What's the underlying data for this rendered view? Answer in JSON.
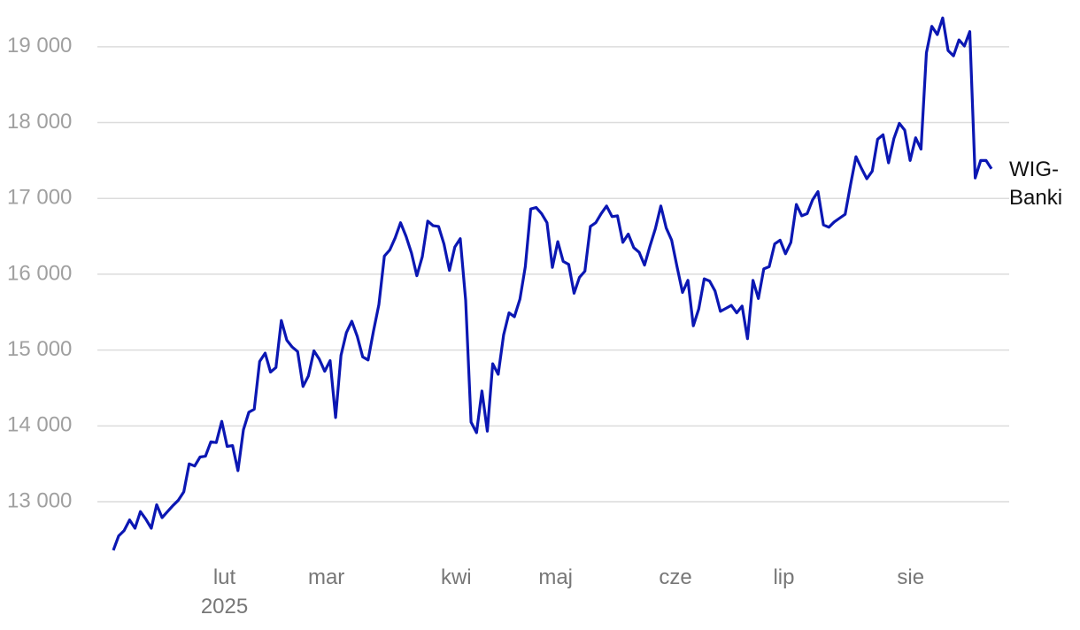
{
  "chart_data": {
    "type": "line",
    "xlim": [
      0,
      162
    ],
    "xticks": [
      {
        "value": 20.5,
        "label": "lut"
      },
      {
        "value": 39.3,
        "label": "mar"
      },
      {
        "value": 63.25,
        "label": "kwi"
      },
      {
        "value": 81.6,
        "label": "maj"
      },
      {
        "value": 103.7,
        "label": "cze"
      },
      {
        "value": 123.7,
        "label": "lip"
      },
      {
        "value": 147.1,
        "label": "sie"
      }
    ],
    "year_label": "2025",
    "ylim": [
      12300,
      19500
    ],
    "yticks": [
      {
        "value": 13000,
        "label": "13 000"
      },
      {
        "value": 14000,
        "label": "14 000"
      },
      {
        "value": 15000,
        "label": "15 000"
      },
      {
        "value": 16000,
        "label": "16 000"
      },
      {
        "value": 17000,
        "label": "17 000"
      },
      {
        "value": 18000,
        "label": "18 000"
      },
      {
        "value": 19000,
        "label": "19 000"
      }
    ],
    "grid": true,
    "series": [
      {
        "name": "WIG-Banki",
        "color": "#0b17b3",
        "values": [
          12360,
          12550,
          12620,
          12760,
          12650,
          12870,
          12770,
          12650,
          12960,
          12790,
          12870,
          12950,
          13020,
          13130,
          13500,
          13470,
          13590,
          13600,
          13790,
          13780,
          14060,
          13730,
          13740,
          13410,
          13950,
          14180,
          14220,
          14850,
          14960,
          14710,
          14770,
          15390,
          15130,
          15040,
          14980,
          14520,
          14660,
          14990,
          14880,
          14720,
          14860,
          14110,
          14930,
          15230,
          15380,
          15180,
          14910,
          14870,
          15250,
          15600,
          16240,
          16320,
          16480,
          16680,
          16500,
          16280,
          15980,
          16230,
          16700,
          16640,
          16630,
          16400,
          16050,
          16360,
          16470,
          15660,
          14050,
          13910,
          14460,
          13930,
          14820,
          14680,
          15200,
          15490,
          15440,
          15670,
          16100,
          16860,
          16880,
          16800,
          16680,
          16090,
          16430,
          16170,
          16130,
          15750,
          15960,
          16040,
          16630,
          16680,
          16800,
          16900,
          16760,
          16770,
          16420,
          16530,
          16350,
          16290,
          16120,
          16370,
          16600,
          16900,
          16610,
          16450,
          16100,
          15760,
          15920,
          15320,
          15540,
          15940,
          15910,
          15780,
          15510,
          15550,
          15590,
          15490,
          15580,
          15150,
          15920,
          15680,
          16070,
          16100,
          16400,
          16450,
          16270,
          16420,
          16920,
          16770,
          16800,
          16980,
          17090,
          16650,
          16620,
          16690,
          16740,
          16790,
          17180,
          17550,
          17400,
          17260,
          17360,
          17780,
          17840,
          17470,
          17790,
          17990,
          17900,
          17500,
          17800,
          17650,
          18920,
          19270,
          19160,
          19380,
          18950,
          18880,
          19090,
          19010,
          19200,
          17270,
          17500,
          17500,
          17390
        ]
      }
    ]
  }
}
